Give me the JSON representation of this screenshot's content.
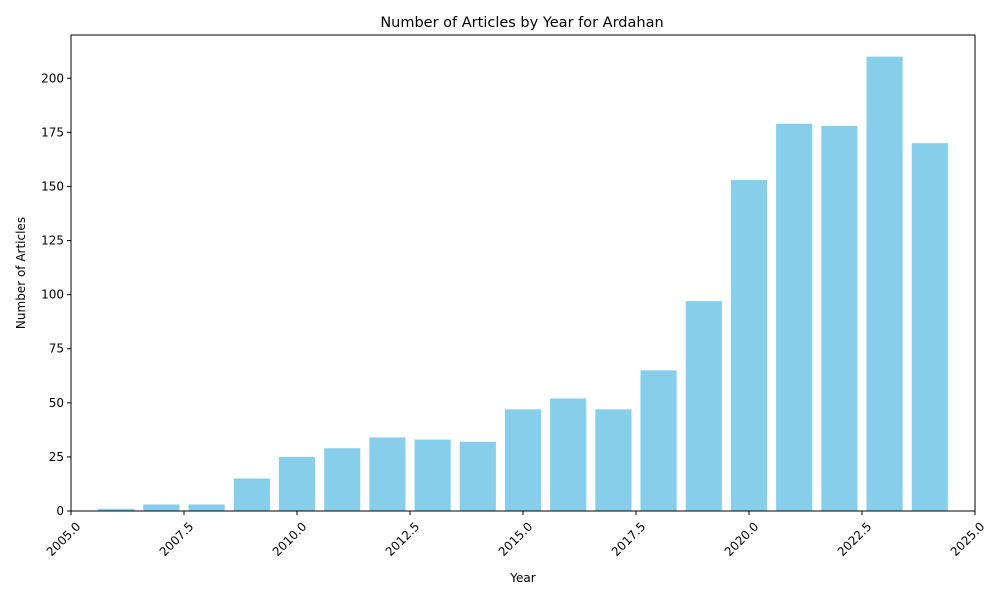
{
  "chart_data": {
    "type": "bar",
    "title": "Number of Articles by Year for Ardahan",
    "xlabel": "Year",
    "ylabel": "Number of Articles",
    "x": [
      2006,
      2007,
      2008,
      2009,
      2010,
      2011,
      2012,
      2013,
      2014,
      2015,
      2016,
      2017,
      2018,
      2019,
      2020,
      2021,
      2022,
      2023,
      2024
    ],
    "values": [
      1,
      3,
      3,
      15,
      25,
      29,
      34,
      33,
      32,
      47,
      52,
      47,
      65,
      97,
      153,
      179,
      178,
      210,
      170
    ],
    "bar_width": 0.8,
    "xlim": [
      2005.0,
      2025.0
    ],
    "ylim": [
      0,
      220
    ],
    "xticks": [
      2005.0,
      2007.5,
      2010.0,
      2012.5,
      2015.0,
      2017.5,
      2020.0,
      2022.5,
      2025.0
    ],
    "xtick_labels": [
      "2005.0",
      "2007.5",
      "2010.0",
      "2012.5",
      "2015.0",
      "2017.5",
      "2020.0",
      "2022.5",
      "2025.0"
    ],
    "yticks": [
      0,
      25,
      50,
      75,
      100,
      125,
      150,
      175,
      200
    ],
    "ytick_labels": [
      "0",
      "25",
      "50",
      "75",
      "100",
      "125",
      "150",
      "175",
      "200"
    ],
    "grid": false,
    "bar_color": "#87ceeb"
  }
}
